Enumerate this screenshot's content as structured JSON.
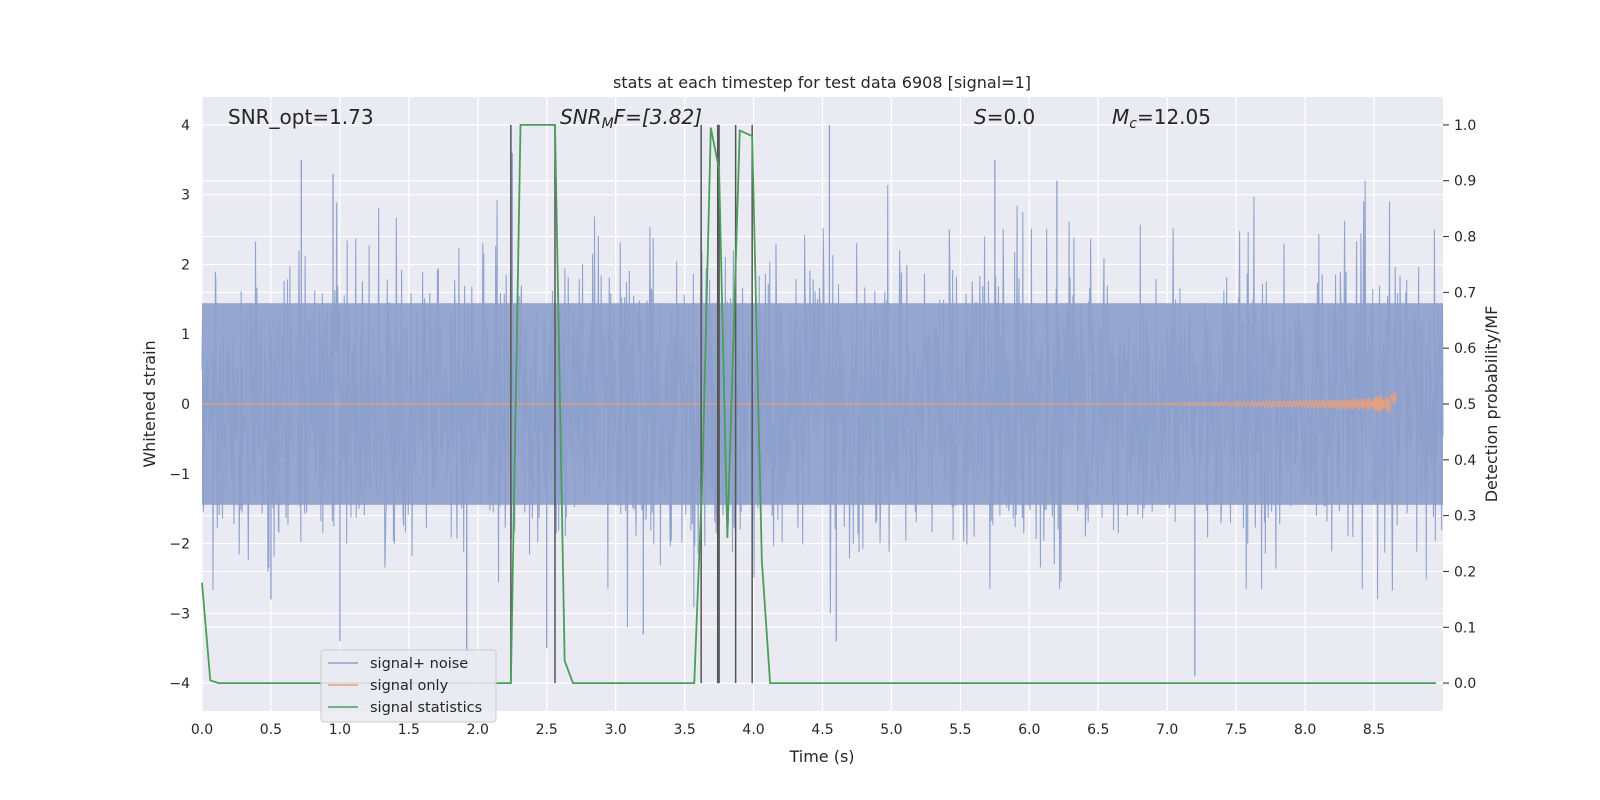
{
  "chart_data": {
    "type": "line",
    "title": "stats at each timestep for test data 6908 [signal=1]",
    "xlabel": "Time (s)",
    "ylabel": "Whitened strain",
    "ylabel_right": "Detection probability/MF",
    "xlim": [
      0.0,
      9.0
    ],
    "ylim": [
      -4.4,
      4.4
    ],
    "ylim_right": [
      -0.05,
      1.05
    ],
    "x_ticks": [
      0.0,
      0.5,
      1.0,
      1.5,
      2.0,
      2.5,
      3.0,
      3.5,
      4.0,
      4.5,
      5.0,
      5.5,
      6.0,
      6.5,
      7.0,
      7.5,
      8.0,
      8.5
    ],
    "x_tick_labels": [
      "0.0",
      "0.5",
      "1.0",
      "1.5",
      "2.0",
      "2.5",
      "3.0",
      "3.5",
      "4.0",
      "4.5",
      "5.0",
      "5.5",
      "6.0",
      "6.5",
      "7.0",
      "7.5",
      "8.0",
      "8.5"
    ],
    "y_ticks": [
      -4,
      -3,
      -2,
      -1,
      0,
      1,
      2,
      3,
      4
    ],
    "y_tick_labels": [
      "−4",
      "−3",
      "−2",
      "−1",
      "0",
      "1",
      "2",
      "3",
      "4"
    ],
    "y_ticks_right": [
      0.0,
      0.1,
      0.2,
      0.3,
      0.4,
      0.5,
      0.6,
      0.7,
      0.8,
      0.9,
      1.0
    ],
    "y_tick_labels_right": [
      "0.0",
      "0.1",
      "0.2",
      "0.3",
      "0.4",
      "0.5",
      "0.6",
      "0.7",
      "0.8",
      "0.9",
      "1.0"
    ],
    "grid": true,
    "legend_position": "lower-left",
    "annotations": {
      "snr_opt": "SNR_opt=1.73",
      "snr_mf_base": "SNR",
      "snr_mf_sub": "M",
      "snr_mf_tail": "F=[3.82]",
      "s_var": "S",
      "s_val": "=0.0",
      "mc_base": "M",
      "mc_sub": "c",
      "mc_val": "=12.05"
    },
    "series": [
      {
        "name": "signal+ noise",
        "color": "#8da0cb",
        "style": "dense-noise",
        "x_range": [
          0.0,
          9.0
        ],
        "envelope_typical": [
          -1.7,
          1.7
        ],
        "peaks": [
          {
            "x": 0.72,
            "y": 3.5
          },
          {
            "x": 0.95,
            "y": 3.3
          },
          {
            "x": 2.25,
            "y": 3.6
          },
          {
            "x": 4.55,
            "y": 4.0
          },
          {
            "x": 5.75,
            "y": 3.5
          },
          {
            "x": 6.2,
            "y": 3.2
          },
          {
            "x": 1.0,
            "y": -3.4
          },
          {
            "x": 1.92,
            "y": -3.6
          },
          {
            "x": 2.5,
            "y": -3.5
          },
          {
            "x": 3.2,
            "y": -3.3
          },
          {
            "x": 4.6,
            "y": -3.4
          },
          {
            "x": 7.2,
            "y": -3.9
          },
          {
            "x": 0.5,
            "y": -2.8
          }
        ]
      },
      {
        "name": "signal only",
        "color": "#e5a07f",
        "style": "chirp",
        "x_range": [
          0.0,
          8.66
        ],
        "amplitude_end": 0.3,
        "visible_from": 6.5
      },
      {
        "name": "signal statistics",
        "color": "#4a9e5a",
        "axis": "right",
        "x": [
          0.0,
          0.06,
          0.12,
          2.24,
          2.31,
          2.56,
          2.63,
          2.69,
          3.57,
          3.63,
          3.69,
          3.75,
          3.81,
          3.9,
          3.99,
          4.06,
          4.12,
          8.95
        ],
        "y": [
          0.18,
          0.005,
          0.0,
          0.0,
          1.0,
          1.0,
          0.04,
          0.0,
          0.0,
          0.38,
          0.995,
          0.92,
          0.26,
          0.99,
          0.98,
          0.22,
          0.0,
          0.0
        ]
      }
    ],
    "vertical_markers": {
      "color": "#555555",
      "y_range": [
        -4.0,
        4.0
      ],
      "x": [
        2.24,
        2.56,
        3.62,
        3.74,
        3.75,
        3.87,
        3.99
      ]
    }
  }
}
